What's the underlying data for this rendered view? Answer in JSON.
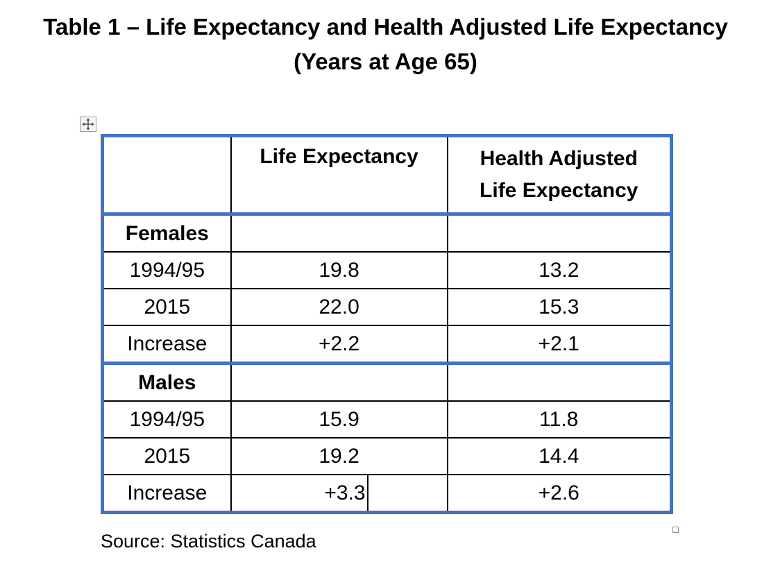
{
  "colors": {
    "accent": "#4472c4"
  },
  "title": {
    "line1": "Table 1 – Life Expectancy and Health Adjusted Life Expectancy",
    "line2": "(Years at Age 65)"
  },
  "icons": {
    "move": "four-arrow-move-icon",
    "resize": "resize-handle-icon"
  },
  "table": {
    "headers": {
      "corner": "",
      "life_expectancy": "Life Expectancy",
      "hale_line1": "Health Adjusted",
      "hale_line2": "Life Expectancy"
    },
    "groups": [
      {
        "label": "Females",
        "rows": [
          {
            "label": "1994/95",
            "le": "19.8",
            "hale": "13.2"
          },
          {
            "label": "2015",
            "le": "22.0",
            "hale": "15.3"
          },
          {
            "label": "Increase",
            "le": "+2.2",
            "hale": "+2.1"
          }
        ]
      },
      {
        "label": "Males",
        "rows": [
          {
            "label": "1994/95",
            "le": "15.9",
            "hale": "11.8"
          },
          {
            "label": "2015",
            "le": "19.2",
            "hale": "14.4"
          },
          {
            "label": "Increase",
            "le": "+3.3",
            "hale": "+2.6"
          }
        ]
      }
    ]
  },
  "source": "Source:  Statistics Canada"
}
